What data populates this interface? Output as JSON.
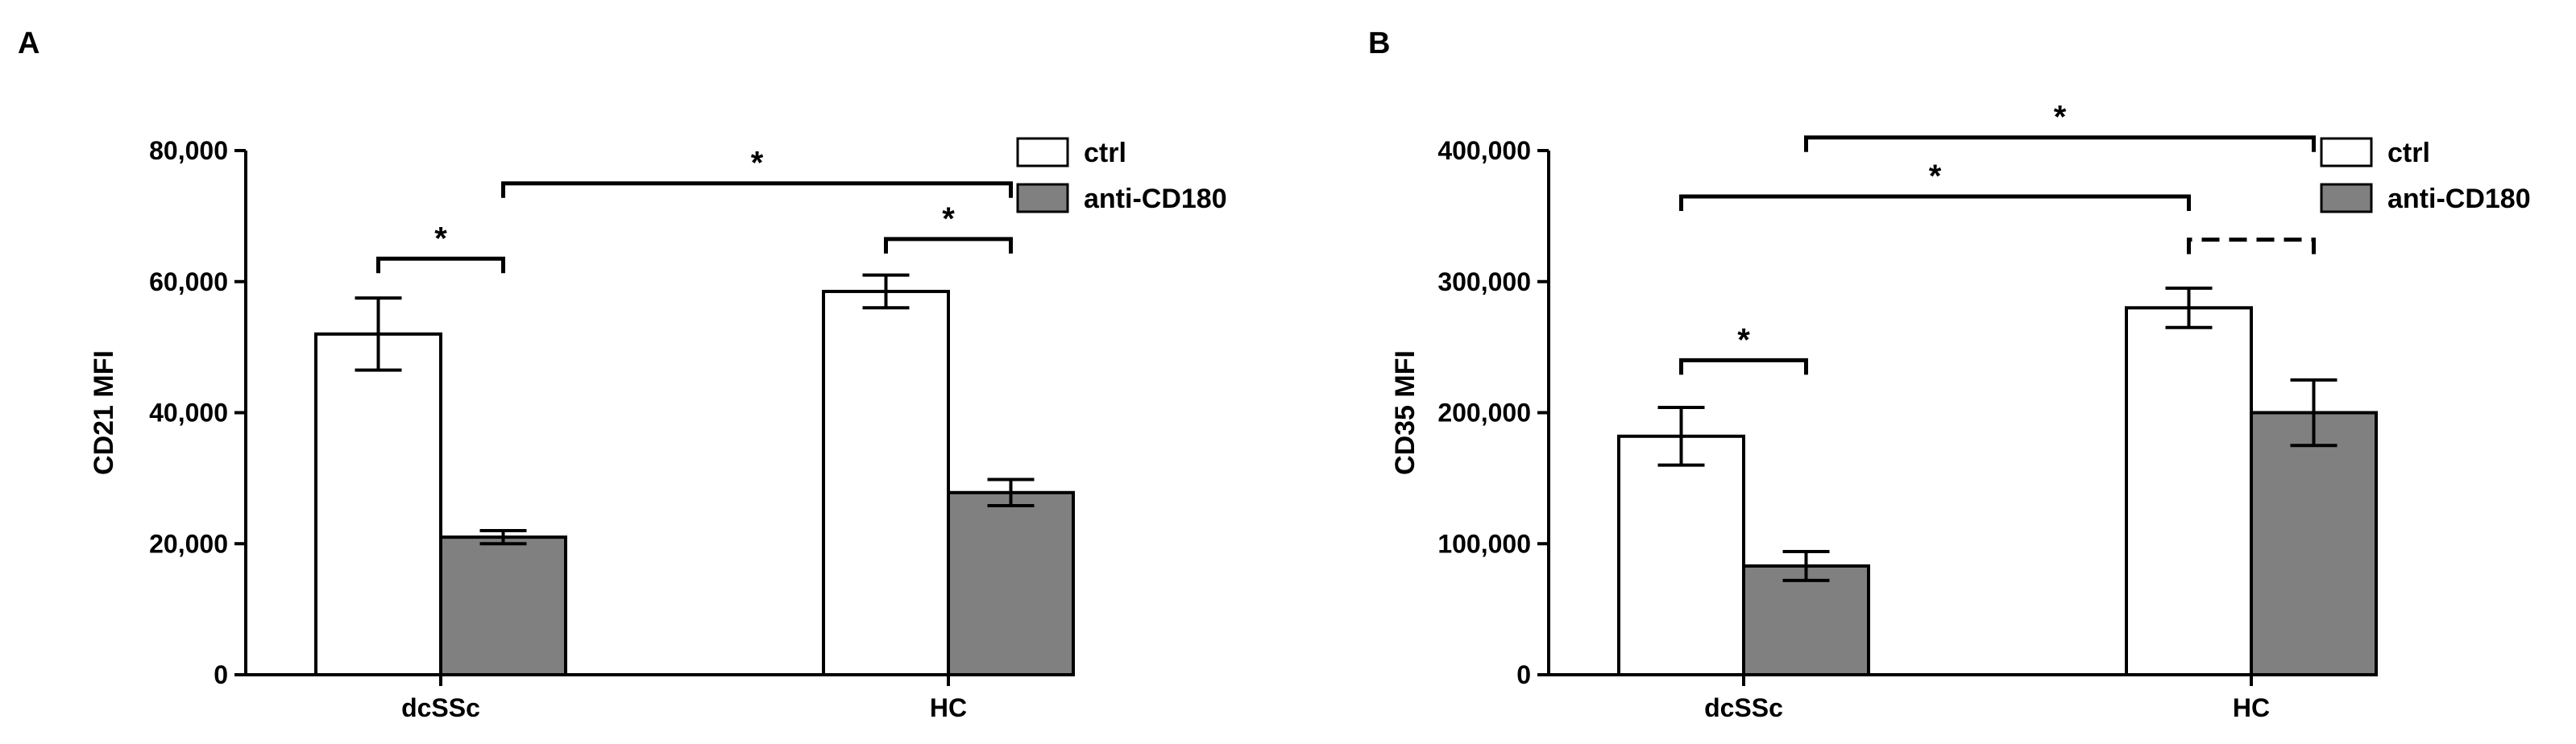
{
  "panels": [
    {
      "label": "A",
      "chart_data": {
        "type": "bar",
        "categories": [
          "dcSSc",
          "HC"
        ],
        "series": [
          {
            "name": "ctrl",
            "values": [
              52000,
              58500
            ],
            "errors": [
              5500,
              2500
            ],
            "color": "#ffffff"
          },
          {
            "name": "anti-CD180",
            "values": [
              21000,
              27800
            ],
            "errors": [
              1000,
              2000
            ],
            "color": "#808080"
          }
        ],
        "ylabel": "CD21 MFI",
        "ylim": [
          0,
          80000
        ],
        "yticks": [
          0,
          20000,
          40000,
          60000,
          80000
        ],
        "ytick_labels": [
          "0",
          "20,000",
          "40,000",
          "60,000",
          "80,000"
        ],
        "legend": "top-right",
        "grid": false,
        "annotations": [
          {
            "label": "*",
            "from": {
              "category": 0,
              "series": 0
            },
            "to": {
              "category": 0,
              "series": 1
            },
            "y": 63500,
            "style": "solid"
          },
          {
            "label": "*",
            "from": {
              "category": 1,
              "series": 0
            },
            "to": {
              "category": 1,
              "series": 1
            },
            "y": 66500,
            "style": "solid"
          },
          {
            "label": "*",
            "from": {
              "category": 0,
              "series": 1
            },
            "to": {
              "category": 1,
              "series": 1
            },
            "y": 75000,
            "style": "solid"
          }
        ]
      }
    },
    {
      "label": "B",
      "chart_data": {
        "type": "bar",
        "categories": [
          "dcSSc",
          "HC"
        ],
        "series": [
          {
            "name": "ctrl",
            "values": [
              182000,
              280000
            ],
            "errors": [
              22000,
              15000
            ],
            "color": "#ffffff"
          },
          {
            "name": "anti-CD180",
            "values": [
              83000,
              200000
            ],
            "errors": [
              11000,
              25000
            ],
            "color": "#808080"
          }
        ],
        "ylabel": "CD35 MFI",
        "ylim": [
          0,
          400000
        ],
        "yticks": [
          0,
          100000,
          200000,
          300000,
          400000
        ],
        "ytick_labels": [
          "0",
          "100,000",
          "200,000",
          "300,000",
          "400,000"
        ],
        "legend": "top-right",
        "grid": false,
        "annotations": [
          {
            "label": "*",
            "from": {
              "category": 0,
              "series": 0
            },
            "to": {
              "category": 0,
              "series": 1
            },
            "y": 240000,
            "style": "solid"
          },
          {
            "label": "",
            "from": {
              "category": 1,
              "series": 0
            },
            "to": {
              "category": 1,
              "series": 1
            },
            "y": 332000,
            "style": "dashed"
          },
          {
            "label": "*",
            "from": {
              "category": 0,
              "series": 0
            },
            "to": {
              "category": 1,
              "series": 0
            },
            "y": 365000,
            "style": "solid"
          },
          {
            "label": "*",
            "from": {
              "category": 0,
              "series": 1
            },
            "to": {
              "category": 1,
              "series": 1
            },
            "y": 410000,
            "style": "solid"
          }
        ]
      }
    }
  ]
}
